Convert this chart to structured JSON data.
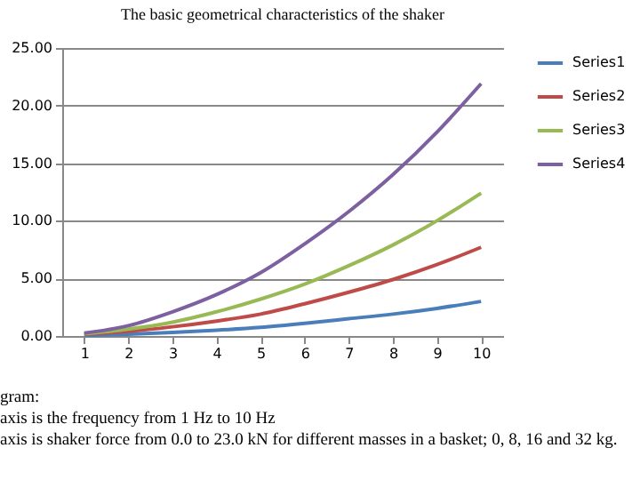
{
  "chart_data": {
    "type": "line",
    "title": "The basic geometrical characteristics of the shaker",
    "categories": [
      "1",
      "2",
      "3",
      "4",
      "5",
      "6",
      "7",
      "8",
      "9",
      "10"
    ],
    "series": [
      {
        "name": "Series1",
        "color": "#4a7ebb",
        "values": [
          0.05,
          0.15,
          0.3,
          0.5,
          0.75,
          1.1,
          1.5,
          1.9,
          2.4,
          3.0
        ]
      },
      {
        "name": "Series2",
        "color": "#be4b48",
        "values": [
          0.15,
          0.4,
          0.8,
          1.3,
          1.9,
          2.8,
          3.8,
          4.9,
          6.2,
          7.7
        ]
      },
      {
        "name": "Series3",
        "color": "#98b954",
        "values": [
          0.2,
          0.6,
          1.2,
          2.1,
          3.2,
          4.5,
          6.1,
          7.9,
          10.0,
          12.4
        ]
      },
      {
        "name": "Series4",
        "color": "#7d60a0",
        "values": [
          0.25,
          0.9,
          2.1,
          3.6,
          5.5,
          8.0,
          10.8,
          14.0,
          17.7,
          21.9
        ]
      }
    ],
    "ylim": [
      0,
      25
    ],
    "yticks": [
      {
        "value": 0,
        "label": "0.00"
      },
      {
        "value": 5,
        "label": "5.00"
      },
      {
        "value": 10,
        "label": "10.00"
      },
      {
        "value": 15,
        "label": "15.00"
      },
      {
        "value": 20,
        "label": "20.00"
      },
      {
        "value": 25,
        "label": "25.00"
      }
    ],
    "grid": "y",
    "legend": "right",
    "marker": "none",
    "annotations": [
      "gram:",
      "axis is the frequency from 1 Hz to 10 Hz",
      "axis is shaker force from 0.0 to 23.0 kN for different masses in a basket; 0, 8, 16 and 32 kg."
    ]
  }
}
